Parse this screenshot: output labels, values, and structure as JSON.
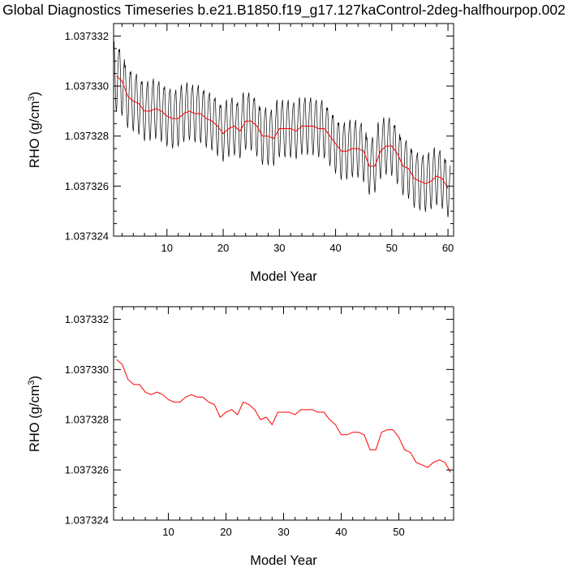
{
  "title": "Global Diagnostics Timeseries b.e21.B1850.f19_g17.127kaControl-2deg-halfhourpop.002",
  "chart_data": [
    {
      "type": "line",
      "xlabel": "Model Year",
      "ylabel_main": "RHO (g/cm",
      "ylabel_sup": "3",
      "ylabel_close": ")",
      "xlim": [
        0.5,
        61
      ],
      "ylim": [
        1.037324,
        1.0373325
      ],
      "xticks": [
        10,
        20,
        30,
        40,
        50,
        60
      ],
      "yticks": [
        1.037324,
        1.037326,
        1.037328,
        1.03733,
        1.037332
      ],
      "ytick_labels": [
        "1.037324",
        "1.037326",
        "1.037328",
        "1.037330",
        "1.037332"
      ],
      "series": [
        {
          "type": "monthly",
          "color": "#000000",
          "amplitude": [
            1.4e-06,
            1.3e-06,
            1.25e-06,
            1.2e-06,
            1.2e-06,
            1.2e-06,
            1.2e-06,
            1.2e-06,
            1.2e-06,
            1.2e-06,
            1.2e-06,
            1.15e-06,
            1.15e-06,
            1.15e-06,
            1.15e-06,
            1.15e-06,
            1.15e-06,
            1.15e-06,
            1.15e-06,
            1.15e-06,
            1.15e-06,
            1.15e-06,
            1.15e-06,
            1.15e-06,
            1.15e-06,
            1.15e-06,
            1.15e-06,
            1.15e-06,
            1.15e-06,
            1.15e-06,
            1.15e-06,
            1.15e-06,
            1.15e-06,
            1.15e-06,
            1.15e-06,
            1.15e-06,
            1.15e-06,
            1.15e-06,
            1.15e-06,
            1.15e-06,
            1.15e-06,
            1.15e-06,
            1.15e-06,
            1.15e-06,
            1.15e-06,
            1.15e-06,
            1.15e-06,
            1.15e-06,
            1.15e-06,
            1.15e-06,
            1.15e-06,
            1.15e-06,
            1.15e-06,
            1.15e-06,
            1.15e-06,
            1.15e-06,
            1.15e-06,
            1.15e-06,
            1.15e-06,
            1.15e-06
          ]
        },
        {
          "type": "annual",
          "color": "#ff0000",
          "x": [
            1,
            2,
            3,
            4,
            5,
            6,
            7,
            8,
            9,
            10,
            11,
            12,
            13,
            14,
            15,
            16,
            17,
            18,
            19,
            20,
            21,
            22,
            23,
            24,
            25,
            26,
            27,
            28,
            29,
            30,
            31,
            32,
            33,
            34,
            35,
            36,
            37,
            38,
            39,
            40,
            41,
            42,
            43,
            44,
            45,
            46,
            47,
            48,
            49,
            50,
            51,
            52,
            53,
            54,
            55,
            56,
            57,
            58,
            59,
            60
          ],
          "y": [
            1.0373304,
            1.0373302,
            1.0373296,
            1.0373294,
            1.0373293,
            1.037329,
            1.037329,
            1.0373291,
            1.037329,
            1.0373288,
            1.0373287,
            1.0373287,
            1.0373289,
            1.037329,
            1.0373289,
            1.0373289,
            1.0373287,
            1.0373286,
            1.0373284,
            1.0373281,
            1.0373283,
            1.0373284,
            1.0373282,
            1.0373286,
            1.0373286,
            1.0373284,
            1.037328,
            1.037328,
            1.0373279,
            1.0373283,
            1.0373283,
            1.0373283,
            1.0373282,
            1.0373284,
            1.0373284,
            1.0373284,
            1.0373283,
            1.0373283,
            1.037328,
            1.0373277,
            1.0373274,
            1.0373274,
            1.0373275,
            1.0373275,
            1.0373274,
            1.0373268,
            1.0373268,
            1.0373274,
            1.0373276,
            1.0373276,
            1.0373273,
            1.0373268,
            1.0373267,
            1.0373263,
            1.0373262,
            1.0373261,
            1.0373262,
            1.0373264,
            1.0373263,
            1.0373259
          ]
        }
      ]
    },
    {
      "type": "line",
      "xlabel": "Model Year",
      "ylabel_main": "RHO (g/cm",
      "ylabel_sup": "3",
      "ylabel_close": ")",
      "xlim": [
        0.5,
        59.5
      ],
      "ylim": [
        1.037324,
        1.0373325
      ],
      "xticks": [
        10,
        20,
        30,
        40,
        50
      ],
      "yticks": [
        1.037324,
        1.037326,
        1.037328,
        1.03733,
        1.037332
      ],
      "ytick_labels": [
        "1.037324",
        "1.037326",
        "1.037328",
        "1.037330",
        "1.037332"
      ],
      "series": [
        {
          "type": "annual",
          "color": "#ff0000",
          "x": [
            1,
            2,
            3,
            4,
            5,
            6,
            7,
            8,
            9,
            10,
            11,
            12,
            13,
            14,
            15,
            16,
            17,
            18,
            19,
            20,
            21,
            22,
            23,
            24,
            25,
            26,
            27,
            28,
            29,
            30,
            31,
            32,
            33,
            34,
            35,
            36,
            37,
            38,
            39,
            40,
            41,
            42,
            43,
            44,
            45,
            46,
            47,
            48,
            49,
            50,
            51,
            52,
            53,
            54,
            55,
            56,
            57,
            58,
            59
          ],
          "y": [
            1.0373304,
            1.0373302,
            1.0373296,
            1.0373294,
            1.0373294,
            1.0373291,
            1.037329,
            1.0373291,
            1.037329,
            1.0373288,
            1.0373287,
            1.0373287,
            1.0373289,
            1.037329,
            1.0373289,
            1.0373289,
            1.0373287,
            1.0373286,
            1.0373281,
            1.0373283,
            1.0373284,
            1.0373282,
            1.0373287,
            1.0373286,
            1.0373284,
            1.037328,
            1.0373281,
            1.0373278,
            1.0373283,
            1.0373283,
            1.0373283,
            1.0373282,
            1.0373284,
            1.0373284,
            1.0373284,
            1.0373283,
            1.0373283,
            1.037328,
            1.0373278,
            1.0373274,
            1.0373274,
            1.0373275,
            1.0373275,
            1.0373274,
            1.0373268,
            1.0373268,
            1.0373275,
            1.0373276,
            1.0373276,
            1.0373273,
            1.0373268,
            1.0373267,
            1.0373263,
            1.0373262,
            1.0373261,
            1.0373263,
            1.0373264,
            1.0373263,
            1.0373259
          ]
        }
      ]
    }
  ]
}
